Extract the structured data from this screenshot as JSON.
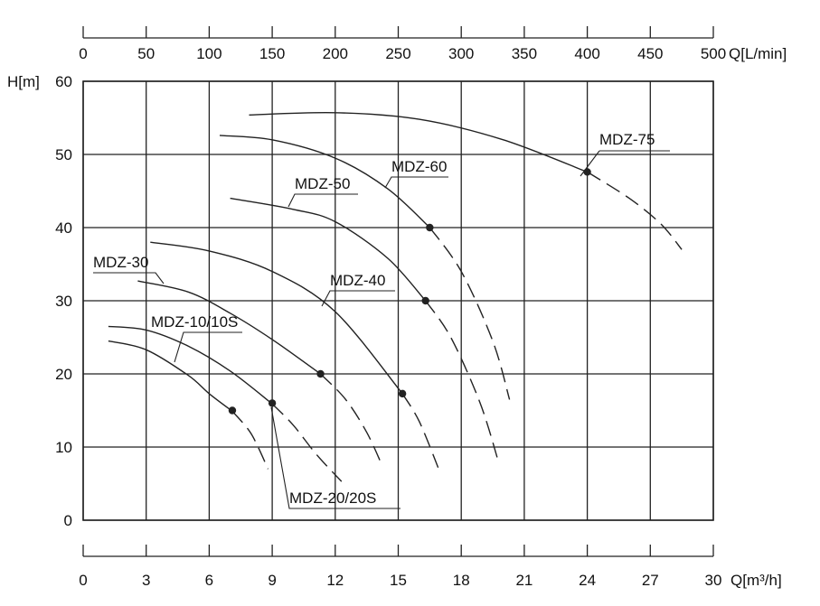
{
  "chart_data": {
    "type": "line",
    "x_axis": {
      "label": "Q[m³/h]",
      "range": [
        0,
        30
      ],
      "ticks": [
        "0",
        "3",
        "6",
        "9",
        "12",
        "15",
        "18",
        "21",
        "24",
        "27",
        "30"
      ]
    },
    "x2_axis": {
      "label": "Q[L/min]",
      "range": [
        0,
        500
      ],
      "ticks": [
        "0",
        "50",
        "100",
        "150",
        "200",
        "250",
        "300",
        "350",
        "400",
        "450",
        "500"
      ]
    },
    "y_axis": {
      "label": "H[m]",
      "range": [
        0,
        60
      ],
      "ticks": [
        "0",
        "10",
        "20",
        "30",
        "40",
        "50",
        "60"
      ]
    },
    "grid": true,
    "series": [
      {
        "name": "MDZ-10/10S",
        "solid": [
          [
            1.2,
            24.5
          ],
          [
            3,
            23.3
          ],
          [
            5,
            19.8
          ],
          [
            6,
            17.3
          ],
          [
            7.1,
            14.9
          ]
        ],
        "dashed": [
          [
            7.1,
            14.9
          ],
          [
            8,
            11.8
          ],
          [
            8.8,
            7
          ]
        ],
        "rated_point": [
          7.1,
          15
        ]
      },
      {
        "name": "MDZ-20/20S",
        "solid": [
          [
            1.2,
            26.5
          ],
          [
            3,
            26
          ],
          [
            5,
            23.8
          ],
          [
            7,
            20.4
          ],
          [
            9,
            15.9
          ]
        ],
        "dashed": [
          [
            9,
            15.9
          ],
          [
            10,
            13
          ],
          [
            11.1,
            9
          ],
          [
            12.3,
            5.3
          ]
        ],
        "rated_point": [
          9,
          16
        ]
      },
      {
        "name": "MDZ-30",
        "solid": [
          [
            2.6,
            32.7
          ],
          [
            5,
            31.2
          ],
          [
            7,
            28.3
          ],
          [
            9,
            24.7
          ],
          [
            11.3,
            20
          ]
        ],
        "dashed": [
          [
            11.3,
            20
          ],
          [
            12.5,
            16.5
          ],
          [
            13.5,
            12
          ],
          [
            14.2,
            7.7
          ]
        ],
        "rated_point": [
          11.3,
          20
        ]
      },
      {
        "name": "MDZ-40",
        "solid": [
          [
            3.2,
            38
          ],
          [
            6,
            36.8
          ],
          [
            9,
            34
          ],
          [
            12,
            28.5
          ],
          [
            15.2,
            17.3
          ]
        ],
        "dashed": [
          [
            15.2,
            17.3
          ],
          [
            16,
            13.5
          ],
          [
            16.9,
            7.2
          ]
        ],
        "rated_point": [
          15.2,
          17.3
        ]
      },
      {
        "name": "MDZ-50",
        "solid": [
          [
            7,
            44
          ],
          [
            10,
            42.5
          ],
          [
            12,
            40.8
          ],
          [
            14.5,
            35.8
          ],
          [
            16.3,
            30
          ]
        ],
        "dashed": [
          [
            16.3,
            30
          ],
          [
            17.5,
            25
          ],
          [
            18.9,
            16
          ],
          [
            19.8,
            7.7
          ]
        ],
        "rated_point": [
          16.3,
          30
        ]
      },
      {
        "name": "MDZ-60",
        "solid": [
          [
            6.5,
            52.6
          ],
          [
            9,
            52
          ],
          [
            12,
            49.5
          ],
          [
            14.5,
            45.3
          ],
          [
            16.5,
            40
          ]
        ],
        "dashed": [
          [
            16.5,
            40
          ],
          [
            18,
            34
          ],
          [
            19.5,
            24.5
          ],
          [
            20.3,
            16.5
          ]
        ],
        "rated_point": [
          16.5,
          40
        ]
      },
      {
        "name": "MDZ-75",
        "solid": [
          [
            7.9,
            55.4
          ],
          [
            12,
            55.7
          ],
          [
            16,
            54.8
          ],
          [
            20,
            52
          ],
          [
            24,
            47.6
          ]
        ],
        "dashed": [
          [
            24,
            47.6
          ],
          [
            26,
            44
          ],
          [
            27.5,
            40.5
          ],
          [
            28.5,
            37
          ]
        ],
        "rated_point": [
          24,
          47.6
        ]
      }
    ]
  }
}
